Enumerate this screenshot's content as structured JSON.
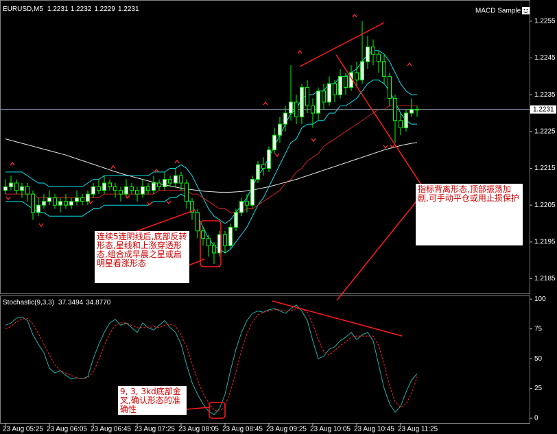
{
  "chart_data": [
    {
      "type": "candlestick",
      "title": "EURUSD,M5",
      "expert_label": "MACD Sample",
      "categories": [
        "23 Aug 05:25",
        null,
        null,
        null,
        null,
        null,
        null,
        null,
        "23 Aug 06:05",
        null,
        null,
        null,
        null,
        null,
        null,
        null,
        "23 Aug 06:45",
        null,
        null,
        null,
        null,
        null,
        null,
        null,
        "23 Aug 07:25",
        null,
        null,
        null,
        null,
        null,
        null,
        null,
        "23 Aug 08:05",
        null,
        null,
        null,
        null,
        null,
        null,
        null,
        "23 Aug 08:45",
        null,
        null,
        null,
        null,
        null,
        null,
        null,
        "23 Aug 09:25",
        null,
        null,
        null,
        null,
        null,
        null,
        null,
        "23 Aug 10:05",
        null,
        null,
        null,
        null,
        null,
        null,
        null,
        "23 Aug 10:45",
        null,
        null,
        null,
        null,
        null,
        null,
        null,
        "23 Aug 11:25",
        null,
        null,
        null
      ],
      "open": [
        1.2209,
        1.221,
        1.2211,
        1.2209,
        1.221,
        1.2208,
        1.2203,
        1.2205,
        1.2206,
        1.2207,
        1.2205,
        1.2206,
        1.2205,
        1.2206,
        1.2207,
        1.2206,
        1.2208,
        1.221,
        1.2209,
        1.2211,
        1.221,
        1.2209,
        1.2208,
        1.221,
        1.2209,
        1.2208,
        1.221,
        1.2209,
        1.2211,
        1.221,
        1.2212,
        1.2211,
        1.2213,
        1.2211,
        1.2206,
        1.2203,
        1.2198,
        1.2196,
        1.2194,
        1.2192,
        1.2197,
        1.2194,
        1.2199,
        1.2203,
        1.2206,
        1.2205,
        1.2212,
        1.2216,
        1.2215,
        1.222,
        1.2224,
        1.2227,
        1.223,
        1.2233,
        1.2229,
        1.2237,
        1.2232,
        1.223,
        1.2236,
        1.2233,
        1.2238,
        1.2235,
        1.224,
        1.2237,
        1.2241,
        1.2239,
        1.2244,
        1.2248,
        1.2246,
        1.2244,
        1.224,
        1.2234,
        1.2228,
        1.2226,
        1.223,
        1.2231
      ],
      "high": [
        1.2212,
        1.2213,
        1.2212,
        1.2211,
        1.2211,
        1.2209,
        1.2207,
        1.2208,
        1.2209,
        1.2208,
        1.2207,
        1.2208,
        1.2207,
        1.2209,
        1.2208,
        1.2209,
        1.2211,
        1.2212,
        1.2213,
        1.2212,
        1.2211,
        1.221,
        1.2212,
        1.2211,
        1.221,
        1.2212,
        1.2211,
        1.2213,
        1.2212,
        1.2214,
        1.2213,
        1.2215,
        1.2214,
        1.2212,
        1.2207,
        1.2204,
        1.2199,
        1.2197,
        1.2195,
        1.2198,
        1.2198,
        1.22,
        1.2204,
        1.2207,
        1.2208,
        1.2213,
        1.2217,
        1.2218,
        1.2221,
        1.2226,
        1.2229,
        1.2232,
        1.2243,
        1.2235,
        1.2238,
        1.2239,
        1.2234,
        1.2237,
        1.2238,
        1.224,
        1.2239,
        1.2242,
        1.2241,
        1.2243,
        1.2244,
        1.2255,
        1.2251,
        1.225,
        1.2247,
        1.2246,
        1.2241,
        1.2235,
        1.223,
        1.2231,
        1.2234,
        1.2232
      ],
      "low": [
        1.2208,
        1.2209,
        1.2208,
        1.2207,
        1.2206,
        1.2201,
        1.2202,
        1.2204,
        1.2205,
        1.2204,
        1.2203,
        1.2204,
        1.2204,
        1.2205,
        1.2205,
        1.2205,
        1.2207,
        1.2208,
        1.2208,
        1.2209,
        1.2207,
        1.2206,
        1.2207,
        1.2208,
        1.2206,
        1.2207,
        1.2208,
        1.2208,
        1.2209,
        1.2209,
        1.221,
        1.221,
        1.2209,
        1.2204,
        1.2201,
        1.2196,
        1.2194,
        1.2191,
        1.2189,
        1.2191,
        1.2192,
        1.2193,
        1.2198,
        1.2202,
        1.2203,
        1.2204,
        1.2211,
        1.2213,
        1.2214,
        1.2219,
        1.2222,
        1.2225,
        1.2228,
        1.2227,
        1.2227,
        1.223,
        1.2226,
        1.2228,
        1.2231,
        1.2232,
        1.2233,
        1.2234,
        1.2235,
        1.2236,
        1.2237,
        1.2238,
        1.2242,
        1.2243,
        1.2241,
        1.2238,
        1.2232,
        1.2222,
        1.2224,
        1.2225,
        1.2229,
        1.2229
      ],
      "close": [
        1.221,
        1.2211,
        1.2209,
        1.221,
        1.2208,
        1.2203,
        1.2205,
        1.2206,
        1.2207,
        1.2205,
        1.2206,
        1.2205,
        1.2206,
        1.2207,
        1.2206,
        1.2208,
        1.221,
        1.2209,
        1.2211,
        1.221,
        1.2209,
        1.2208,
        1.221,
        1.2209,
        1.2208,
        1.221,
        1.2209,
        1.2211,
        1.221,
        1.2212,
        1.2211,
        1.2213,
        1.2211,
        1.2206,
        1.2203,
        1.2198,
        1.2196,
        1.2194,
        1.2192,
        1.2197,
        1.2194,
        1.2199,
        1.2203,
        1.2206,
        1.2205,
        1.2212,
        1.2216,
        1.2215,
        1.222,
        1.2224,
        1.2227,
        1.223,
        1.2233,
        1.2229,
        1.2237,
        1.2232,
        1.223,
        1.2236,
        1.2233,
        1.2238,
        1.2235,
        1.224,
        1.2237,
        1.2241,
        1.2239,
        1.2244,
        1.2248,
        1.2246,
        1.2244,
        1.224,
        1.2234,
        1.2228,
        1.2226,
        1.223,
        1.2231,
        1.2231
      ],
      "candle_color": "#00ff00",
      "up_fill": "#ffffff",
      "down_fill": "#000000",
      "series": [
        {
          "color": "#00e5ee",
          "values": [
            1.2214,
            1.2214,
            1.2214,
            1.2214,
            1.2213,
            1.2212,
            1.2211,
            1.2211,
            1.221,
            1.221,
            1.221,
            1.221,
            1.221,
            1.221,
            1.221,
            1.2211,
            1.2212,
            1.2212,
            1.2213,
            1.2213,
            1.2213,
            1.2213,
            1.2213,
            1.2213,
            1.2213,
            1.2213,
            1.2213,
            1.2214,
            1.2214,
            1.2214,
            1.2215,
            1.2215,
            1.2216,
            1.2215,
            1.2213,
            1.221,
            1.2207,
            1.2204,
            1.2202,
            1.2201,
            1.22,
            1.2201,
            1.2203,
            1.2205,
            1.2207,
            1.221,
            1.2213,
            1.2215,
            1.2218,
            1.2221,
            1.2224,
            1.2227,
            1.223,
            1.2231,
            1.2234,
            1.2235,
            1.2235,
            1.2236,
            1.2236,
            1.2238,
            1.2238,
            1.224,
            1.224,
            1.2241,
            1.2242,
            1.2244,
            1.2246,
            1.2247,
            1.2247,
            1.2246,
            1.2244,
            1.2241,
            1.2238,
            1.2236,
            1.2235,
            1.2235
          ]
        },
        {
          "color": "#00e5ee",
          "values": [
            1.2206,
            1.2206,
            1.2206,
            1.2206,
            1.2205,
            1.2204,
            1.2203,
            1.2203,
            1.2202,
            1.2202,
            1.2202,
            1.2202,
            1.2202,
            1.2202,
            1.2202,
            1.2203,
            1.2204,
            1.2204,
            1.2205,
            1.2205,
            1.2205,
            1.2205,
            1.2205,
            1.2205,
            1.2205,
            1.2205,
            1.2205,
            1.2206,
            1.2206,
            1.2206,
            1.2207,
            1.2207,
            1.2208,
            1.2207,
            1.2205,
            1.2202,
            1.2199,
            1.2196,
            1.2194,
            1.2193,
            1.2192,
            1.2193,
            1.2195,
            1.2197,
            1.2199,
            1.2202,
            1.2205,
            1.2207,
            1.221,
            1.2213,
            1.2216,
            1.2219,
            1.2222,
            1.2223,
            1.2226,
            1.2227,
            1.2227,
            1.2228,
            1.2228,
            1.223,
            1.223,
            1.2232,
            1.2232,
            1.2233,
            1.2234,
            1.2236,
            1.2238,
            1.2239,
            1.2239,
            1.2238,
            1.2236,
            1.2233,
            1.223,
            1.2228,
            1.2227,
            1.2227
          ]
        },
        {
          "color": "#d42020",
          "values": [
            1.2208,
            1.2208,
            1.2208,
            1.2208,
            1.2208,
            1.2208,
            1.2207,
            1.2207,
            1.2207,
            1.2207,
            1.2207,
            1.2207,
            1.2207,
            1.2207,
            1.2207,
            1.2207,
            1.2207,
            1.2207,
            1.2208,
            1.2208,
            1.2208,
            1.2208,
            1.2208,
            1.2208,
            1.2208,
            1.2208,
            1.2208,
            1.2208,
            1.2209,
            1.2209,
            1.2209,
            1.2209,
            1.2209,
            1.2209,
            1.2208,
            1.2208,
            1.2207,
            1.2206,
            1.2205,
            1.2204,
            1.2204,
            1.2203,
            1.2203,
            1.2203,
            1.2204,
            1.2204,
            1.2205,
            1.2206,
            1.2207,
            1.2208,
            1.2209,
            1.2211,
            1.2212,
            1.2214,
            1.2215,
            1.2217,
            1.2218,
            1.2219,
            1.2221,
            1.2222,
            1.2223,
            1.2224,
            1.2225,
            1.2226,
            1.2227,
            1.2228,
            1.2229,
            1.223,
            1.2231,
            1.2231,
            1.2232,
            1.2232,
            1.2232,
            1.2232,
            1.2232,
            1.2232
          ]
        },
        {
          "color": "#e8e8e8",
          "values": [
            1.2223,
            1.22226,
            1.22222,
            1.22218,
            1.22214,
            1.2221,
            1.22206,
            1.22202,
            1.22198,
            1.22194,
            1.2219,
            1.22186,
            1.22181,
            1.22176,
            1.22171,
            1.22166,
            1.22161,
            1.22156,
            1.22151,
            1.22146,
            1.22141,
            1.22136,
            1.22132,
            1.22128,
            1.22124,
            1.2212,
            1.22116,
            1.22112,
            1.22108,
            1.22105,
            1.22102,
            1.22099,
            1.22096,
            1.22094,
            1.22092,
            1.2209,
            1.22088,
            1.22087,
            1.22086,
            1.22085,
            1.22085,
            1.22085,
            1.22086,
            1.22087,
            1.22089,
            1.22091,
            1.22094,
            1.22097,
            1.221,
            1.22104,
            1.22108,
            1.22112,
            1.22116,
            1.2212,
            1.22125,
            1.2213,
            1.22135,
            1.2214,
            1.22145,
            1.2215,
            1.22155,
            1.2216,
            1.22165,
            1.2217,
            1.22175,
            1.2218,
            1.22185,
            1.2219,
            1.22195,
            1.222,
            1.22204,
            1.22208,
            1.22212,
            1.22215,
            1.22218,
            1.2222
          ]
        }
      ],
      "ylim": [
        1.2181,
        1.226
      ],
      "yticks": [
        1.2185,
        1.2195,
        1.2205,
        1.2215,
        1.2225,
        1.2235,
        1.2245,
        1.2255
      ],
      "grid": false,
      "annotations": [
        "连续5连阴线后,底部反转形态,星线和上涨穿透形态,组合成早晨之星或启明星看涨形态",
        "指标背离形态,顶部振荡加剧,可手动平仓或用止损保护"
      ]
    },
    {
      "type": "line",
      "title": "Stochastic(9,3,3)",
      "series": [
        {
          "color": "#20b2aa",
          "dashed": false,
          "values": [
            78,
            80,
            84,
            85,
            82,
            70,
            62,
            55,
            42,
            38,
            40,
            36,
            33,
            34,
            33,
            35,
            50,
            62,
            72,
            80,
            83,
            78,
            80,
            76,
            72,
            80,
            76,
            74,
            78,
            82,
            76,
            72,
            62,
            45,
            30,
            20,
            12,
            6,
            3,
            8,
            20,
            40,
            58,
            72,
            82,
            88,
            90,
            89,
            91,
            92,
            90,
            88,
            92,
            95,
            90,
            82,
            65,
            50,
            52,
            58,
            60,
            65,
            68,
            72,
            66,
            70,
            72,
            65,
            45,
            25,
            12,
            5,
            10,
            22,
            32,
            37.3494
          ]
        },
        {
          "color": "#ff2020",
          "dashed": true,
          "values": [
            75,
            77,
            81,
            83,
            84,
            79,
            71,
            62,
            53,
            45,
            40,
            38,
            36,
            34,
            33,
            34,
            39,
            49,
            61,
            71,
            78,
            80,
            80,
            78,
            76,
            76,
            76,
            77,
            76,
            78,
            79,
            77,
            70,
            60,
            46,
            32,
            21,
            13,
            7,
            6,
            10,
            23,
            39,
            57,
            71,
            81,
            87,
            89,
            90,
            91,
            91,
            90,
            90,
            92,
            92,
            89,
            79,
            66,
            56,
            53,
            57,
            61,
            64,
            68,
            69,
            69,
            69,
            69,
            61,
            45,
            27,
            14,
            9,
            12,
            21,
            34.877
          ],
          "value_labels": [
            null,
            null,
            null,
            null,
            null,
            null,
            null,
            null,
            null,
            null,
            null,
            null,
            null,
            null,
            null,
            null,
            null,
            null,
            null,
            null,
            null,
            null,
            null,
            null,
            null,
            null,
            null,
            null,
            null,
            null,
            null,
            null,
            null,
            null,
            null,
            null,
            null,
            null,
            null,
            null,
            null,
            null,
            null,
            null,
            null,
            null,
            null,
            null,
            null,
            null,
            null,
            null,
            null,
            null,
            null,
            null,
            null,
            null,
            null,
            null,
            null,
            null,
            null,
            null,
            null,
            null,
            null,
            null,
            null,
            null,
            null,
            null,
            null,
            null,
            null,
            "34.8770"
          ]
        }
      ],
      "ylim": [
        -4,
        103
      ],
      "yticks": [
        0,
        25,
        50,
        75,
        100
      ],
      "grid": false,
      "annotations": [
        "9, 3, 3kd底部金叉,确认形态的准确性"
      ]
    }
  ]
}
